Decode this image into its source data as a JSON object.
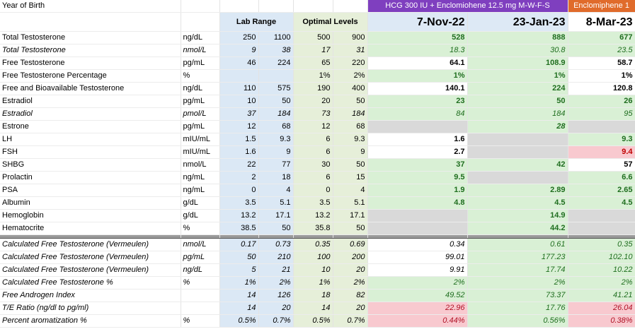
{
  "header": {
    "year_of_birth": "Year of Birth",
    "regimen_1": "HCG 300 IU + Enclomiohene 12.5 mg M-W-F-S",
    "regimen_2": "Enclomiphene 1",
    "lab_range": "Lab Range",
    "optimal_levels": "Optimal Levels",
    "date_1": "7-Nov-22",
    "date_2": "23-Jan-23",
    "date_3": "8-Mar-23"
  },
  "rows": [
    {
      "name": "Total Testosterone",
      "unit": "ng/dL",
      "lab_lo": "250",
      "lab_hi": "1100",
      "opt_lo": "500",
      "opt_hi": "900",
      "v1": "528",
      "v2": "888",
      "v3": "677",
      "s1": "green b",
      "s2": "green b",
      "s3": "green b"
    },
    {
      "name": "Total Testosterone",
      "unit": "nmol/L",
      "lab_lo": "9",
      "lab_hi": "38",
      "opt_lo": "17",
      "opt_hi": "31",
      "v1": "18.3",
      "v2": "30.8",
      "v3": "23.5",
      "s1": "green i",
      "s2": "green i",
      "s3": "green i",
      "italic": true
    },
    {
      "name": "Free Testosterone",
      "unit": "pg/mL",
      "lab_lo": "46",
      "lab_hi": "224",
      "opt_lo": "65",
      "opt_hi": "220",
      "v1": "64.1",
      "v2": "108.9",
      "v3": "58.7",
      "s1": "white b",
      "s2": "green b",
      "s3": "white b"
    },
    {
      "name": "Free Testosterone Percentage",
      "unit": "%",
      "lab_lo": "",
      "lab_hi": "",
      "opt_lo": "1%",
      "opt_hi": "2%",
      "v1": "1%",
      "v2": "1%",
      "v3": "1%",
      "s1": "green b",
      "s2": "green b",
      "s3": "white b"
    },
    {
      "name": "Free and Bioavailable Testosterone",
      "unit": "ng/dL",
      "lab_lo": "110",
      "lab_hi": "575",
      "opt_lo": "190",
      "opt_hi": "400",
      "v1": "140.1",
      "v2": "224",
      "v3": "120.8",
      "s1": "white b",
      "s2": "green b",
      "s3": "white b"
    },
    {
      "name": "Estradiol",
      "unit": "pg/mL",
      "lab_lo": "10",
      "lab_hi": "50",
      "opt_lo": "20",
      "opt_hi": "50",
      "v1": "23",
      "v2": "50",
      "v3": "26",
      "s1": "green b",
      "s2": "green b",
      "s3": "green b",
      "grp": true
    },
    {
      "name": "Estradiol",
      "unit": "pmol/L",
      "lab_lo": "37",
      "lab_hi": "184",
      "opt_lo": "73",
      "opt_hi": "184",
      "v1": "84",
      "v2": "184",
      "v3": "95",
      "s1": "green i",
      "s2": "green i",
      "s3": "green i",
      "italic": true
    },
    {
      "name": "Estrone",
      "unit": "pg/mL",
      "lab_lo": "12",
      "lab_hi": "68",
      "opt_lo": "12",
      "opt_hi": "68",
      "v1": "",
      "v2": "28",
      "v3": "",
      "s1": "gray",
      "s2": "green b i",
      "s3": "gray"
    },
    {
      "name": "LH",
      "unit": "mIU/mL",
      "lab_lo": "1.5",
      "lab_hi": "9.3",
      "opt_lo": "6",
      "opt_hi": "9.3",
      "v1": "1.6",
      "v2": "",
      "v3": "9.3",
      "s1": "white b",
      "s2": "gray",
      "s3": "green b",
      "grp": true
    },
    {
      "name": "FSH",
      "unit": "mIU/mL",
      "lab_lo": "1.6",
      "lab_hi": "9",
      "opt_lo": "6",
      "opt_hi": "9",
      "v1": "2.7",
      "v2": "",
      "v3": "9.4",
      "s1": "white b",
      "s2": "gray",
      "s3": "pinkb b"
    },
    {
      "name": "SHBG",
      "unit": "nmol/L",
      "lab_lo": "22",
      "lab_hi": "77",
      "opt_lo": "30",
      "opt_hi": "50",
      "v1": "37",
      "v2": "42",
      "v3": "57",
      "s1": "green b",
      "s2": "green b",
      "s3": "white b"
    },
    {
      "name": "Prolactin",
      "unit": "ng/mL",
      "lab_lo": "2",
      "lab_hi": "18",
      "opt_lo": "6",
      "opt_hi": "15",
      "v1": "9.5",
      "v2": "",
      "v3": "6.6",
      "s1": "green b",
      "s2": "gray",
      "s3": "green b"
    },
    {
      "name": "PSA",
      "unit": "ng/mL",
      "lab_lo": "0",
      "lab_hi": "4",
      "opt_lo": "0",
      "opt_hi": "4",
      "v1": "1.9",
      "v2": "2.89",
      "v3": "2.65",
      "s1": "green b",
      "s2": "green b",
      "s3": "green b"
    },
    {
      "name": "Albumin",
      "unit": "g/dL",
      "lab_lo": "3.5",
      "lab_hi": "5.1",
      "opt_lo": "3.5",
      "opt_hi": "5.1",
      "v1": "4.8",
      "v2": "4.5",
      "v3": "4.5",
      "s1": "green b",
      "s2": "green b",
      "s3": "green b",
      "grp": true
    },
    {
      "name": "Hemoglobin",
      "unit": "g/dL",
      "lab_lo": "13.2",
      "lab_hi": "17.1",
      "opt_lo": "13.2",
      "opt_hi": "17.1",
      "v1": "",
      "v2": "14.9",
      "v3": "",
      "s1": "gray",
      "s2": "green b",
      "s3": "gray"
    },
    {
      "name": "Hematocrite",
      "unit": "%",
      "lab_lo": "38.5",
      "lab_hi": "50",
      "opt_lo": "35.8",
      "opt_hi": "50",
      "v1": "",
      "v2": "44.2",
      "v3": "",
      "s1": "gray",
      "s2": "green b",
      "s3": "gray"
    },
    {
      "sep": true
    },
    {
      "name": "Calculated Free Testosterone (Vermeulen)",
      "unit": "nmol/L",
      "lab_lo": "0.17",
      "lab_hi": "0.73",
      "opt_lo": "0.35",
      "opt_hi": "0.69",
      "v1": "0.34",
      "v2": "0.61",
      "v3": "0.35",
      "s1": "white i",
      "s2": "green i",
      "s3": "green i",
      "italic": true
    },
    {
      "name": "Calculated Free Testosterone (Vermeulen)",
      "unit": "pg/mL",
      "lab_lo": "50",
      "lab_hi": "210",
      "opt_lo": "100",
      "opt_hi": "200",
      "v1": "99.01",
      "v2": "177.23",
      "v3": "102.10",
      "s1": "white i",
      "s2": "green i",
      "s3": "green i",
      "italic": true
    },
    {
      "name": "Calculated Free Testosterone (Vermeulen)",
      "unit": "ng/dL",
      "lab_lo": "5",
      "lab_hi": "21",
      "opt_lo": "10",
      "opt_hi": "20",
      "v1": "9.91",
      "v2": "17.74",
      "v3": "10.22",
      "s1": "white i",
      "s2": "green i",
      "s3": "green i",
      "italic": true
    },
    {
      "name": "Calculated Free Testosterone %",
      "unit": "%",
      "lab_lo": "1%",
      "lab_hi": "2%",
      "opt_lo": "1%",
      "opt_hi": "2%",
      "v1": "2%",
      "v2": "2%",
      "v3": "2%",
      "s1": "green i",
      "s2": "green i",
      "s3": "green i",
      "italic": true
    },
    {
      "name": "Free Androgen Index",
      "unit": "",
      "lab_lo": "14",
      "lab_hi": "126",
      "opt_lo": "18",
      "opt_hi": "82",
      "v1": "49.52",
      "v2": "73.37",
      "v3": "41.21",
      "s1": "green i",
      "s2": "green i",
      "s3": "green i",
      "italic": true
    },
    {
      "name": "T/E Ratio (ng/dl to pg/ml)",
      "unit": "",
      "lab_lo": "14",
      "lab_hi": "20",
      "opt_lo": "14",
      "opt_hi": "20",
      "v1": "22.96",
      "v2": "17.76",
      "v3": "26.04",
      "s1": "pink i",
      "s2": "green i",
      "s3": "pink i",
      "italic": true
    },
    {
      "name": "Percent aromatization %",
      "unit": "%",
      "lab_lo": "0.5%",
      "lab_hi": "0.7%",
      "opt_lo": "0.5%",
      "opt_hi": "0.7%",
      "v1": "0.44%",
      "v2": "0.56%",
      "v3": "0.38%",
      "s1": "pink i",
      "s2": "green i",
      "s3": "pink i",
      "italic": true
    }
  ]
}
